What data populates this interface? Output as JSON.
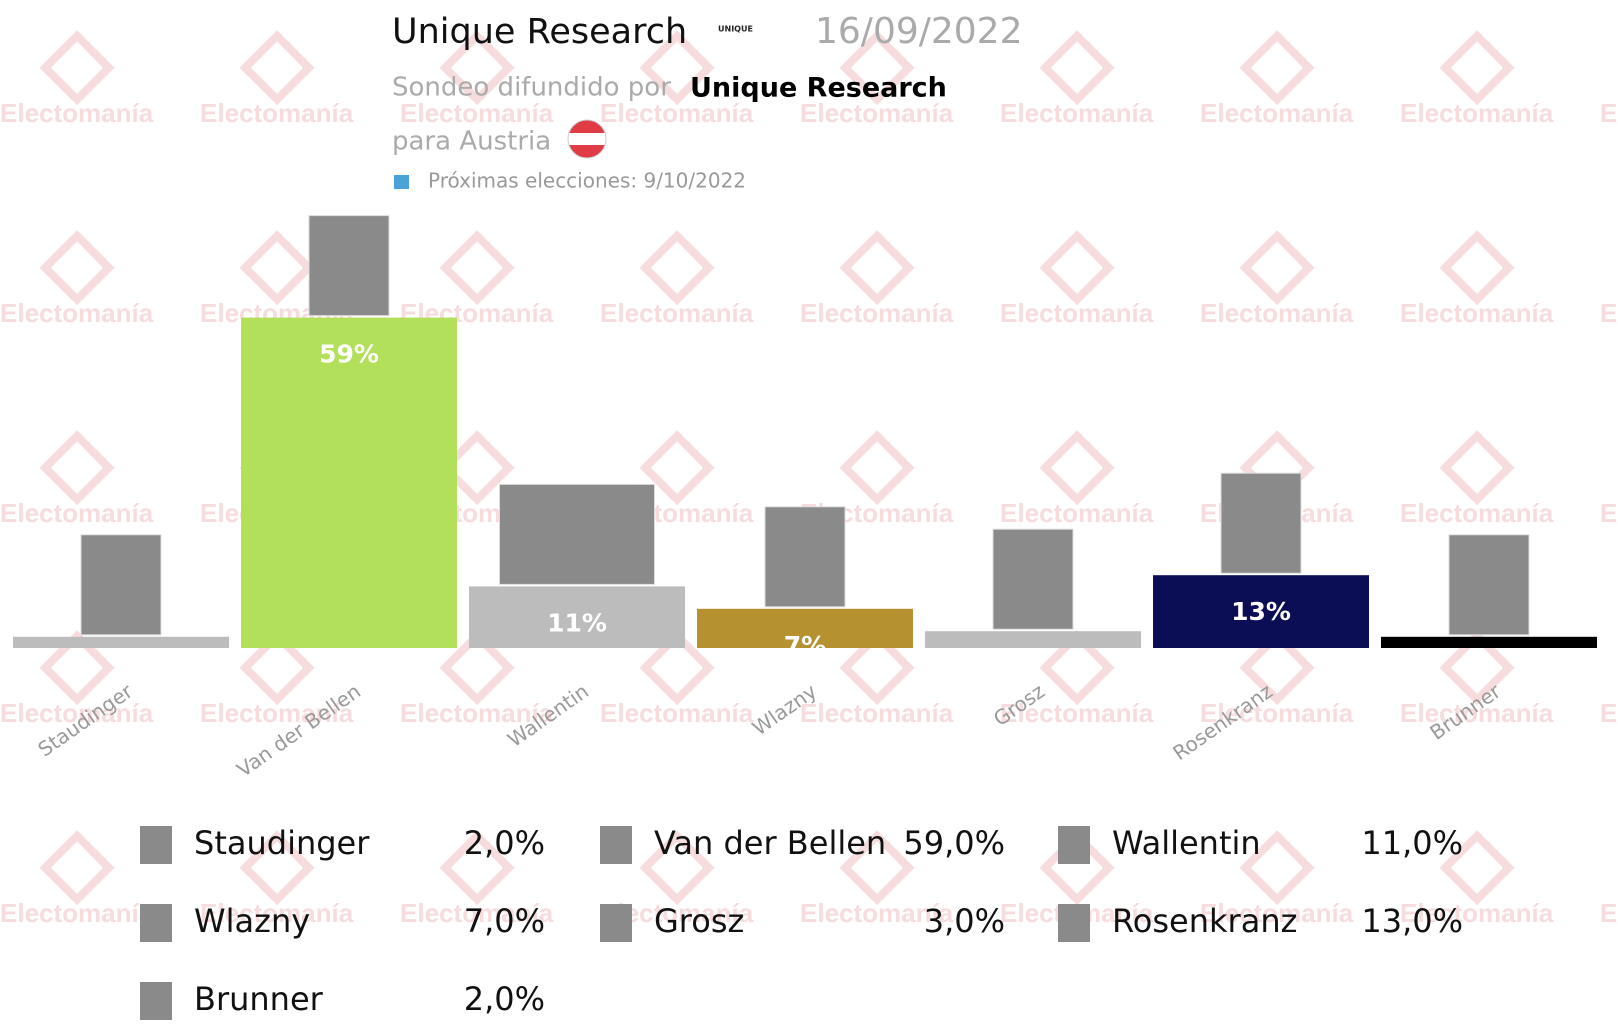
{
  "chart_data": {
    "type": "bar",
    "title": "Unique Research",
    "date": "16/09/2022",
    "subtitle": "Sondeo difundido por",
    "source": "Unique Research",
    "region": "para Austria",
    "next_election": "Próximas elecciones: 9/10/2022",
    "watermark": "Electomanía",
    "categories": [
      "Staudinger",
      "Van der Bellen",
      "Wallentin",
      "Wlazny",
      "Grosz",
      "Rosenkranz",
      "Brunner"
    ],
    "values": [
      2,
      59,
      11,
      7,
      3,
      13,
      2
    ],
    "value_labels": [
      null,
      "59%",
      "11%",
      "7%",
      null,
      "13%",
      null
    ],
    "legend_labels": [
      "2,0%",
      "59,0%",
      "11,0%",
      "7,0%",
      "3,0%",
      "13,0%",
      "2,0%"
    ],
    "colors": [
      "#bcbcbc",
      "#b3e05a",
      "#bcbcbc",
      "#b5922f",
      "#bcbcbc",
      "#0b0d55",
      "#000000"
    ]
  }
}
